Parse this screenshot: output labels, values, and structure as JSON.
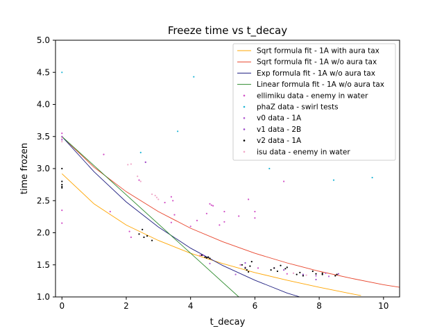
{
  "chart_data": {
    "type": "scatter",
    "title": "Freeze time vs t_decay",
    "xlabel": "t_decay",
    "ylabel": "time frozen",
    "xlim": [
      -0.2,
      10.5
    ],
    "ylim": [
      1.0,
      5.0
    ],
    "xticks": [
      0,
      2,
      4,
      6,
      8,
      10
    ],
    "yticks": [
      1.0,
      1.5,
      2.0,
      2.5,
      3.0,
      3.5,
      4.0,
      4.5,
      5.0
    ],
    "xtick_labels": [
      "0",
      "2",
      "4",
      "6",
      "8",
      "10"
    ],
    "ytick_labels": [
      "1.0",
      "1.5",
      "2.0",
      "2.5",
      "3.0",
      "3.5",
      "4.0",
      "4.5",
      "5.0"
    ],
    "grid": false,
    "legend_position": "top-right",
    "lines": [
      {
        "name": "Sqrt formula fit - 1A with aura tax",
        "color": "#ffa500",
        "x": [
          0,
          1,
          2,
          3,
          4,
          5,
          6,
          7,
          8,
          9,
          9.3
        ],
        "y": [
          2.92,
          2.45,
          2.12,
          1.88,
          1.68,
          1.52,
          1.38,
          1.26,
          1.15,
          1.05,
          1.02
        ]
      },
      {
        "name": "Sqrt formula fit - 1A w/o aura tax",
        "color": "#e8432a",
        "x": [
          0,
          1,
          2,
          3,
          4,
          5,
          6,
          7,
          8,
          9,
          10,
          10.5
        ],
        "y": [
          3.5,
          3.02,
          2.64,
          2.33,
          2.07,
          1.86,
          1.68,
          1.53,
          1.4,
          1.29,
          1.19,
          1.15
        ]
      },
      {
        "name": "Exp formula fit - 1A w/o aura tax",
        "color": "#1f1f80",
        "x": [
          0,
          1,
          2,
          3,
          4,
          5,
          6,
          7,
          7.4
        ],
        "y": [
          3.5,
          2.95,
          2.48,
          2.09,
          1.76,
          1.49,
          1.26,
          1.06,
          1.0
        ]
      },
      {
        "name": "Linear formula fit - 1A w/o aura tax",
        "color": "#2e8b2e",
        "x": [
          0,
          5.5
        ],
        "y": [
          3.5,
          1.0
        ]
      }
    ],
    "series": [
      {
        "name": "ellimiku data - enemy in water",
        "color": "#d14fc6",
        "x": [
          0,
          0,
          0,
          0,
          1.3,
          1.5,
          2.1,
          2.15,
          2.4,
          2.6,
          3.2,
          3.4,
          3.45,
          3.5,
          3.4,
          4.0,
          4.2,
          4.3,
          4.5,
          4.6,
          4.65,
          4.7,
          4.9,
          5.05,
          5.05,
          5.5,
          5.55,
          5.8,
          6.0,
          6.0,
          6.1,
          6.9,
          7.0
        ],
        "y": [
          3.55,
          3.45,
          2.35,
          2.15,
          3.22,
          2.33,
          2.02,
          1.93,
          2.82,
          3.1,
          2.47,
          2.56,
          2.5,
          2.28,
          2.16,
          2.1,
          2.19,
          1.65,
          2.3,
          2.45,
          2.43,
          2.42,
          2.12,
          2.33,
          2.17,
          2.26,
          1.5,
          2.52,
          2.33,
          2.23,
          1.45,
          2.8,
          1.36
        ]
      },
      {
        "name": "phaZ data - swirl tests",
        "color": "#1fb5d6",
        "x": [
          0,
          2.45,
          3.6,
          4.1,
          6.45,
          8.45,
          9.65
        ],
        "y": [
          4.5,
          3.25,
          3.58,
          4.43,
          3.0,
          2.82,
          2.86
        ]
      },
      {
        "name": "v0 data - 1A",
        "color": "#b25bd1",
        "x": [
          0,
          4.6,
          5.4,
          5.7,
          7.9,
          8.2,
          8.3
        ],
        "y": [
          3.45,
          1.52,
          1.35,
          1.46,
          1.33,
          1.37,
          1.32
        ]
      },
      {
        "name": "v1 data - 2B",
        "color": "#9a49c9",
        "x": [
          0,
          2.6,
          4.4,
          4.6,
          5.7,
          6.6,
          6.9,
          7.2,
          7.5,
          7.9,
          8.6
        ],
        "y": [
          3.5,
          3.1,
          1.65,
          1.6,
          1.53,
          1.45,
          1.42,
          1.37,
          1.35,
          1.27,
          1.36
        ]
      },
      {
        "name": "v2 data - 1A",
        "color": "#000000",
        "x": [
          0,
          0,
          0,
          0,
          0,
          2.4,
          2.5,
          2.55,
          2.65,
          2.8,
          4.35,
          4.45,
          4.5,
          4.55,
          4.6,
          5.6,
          5.7,
          5.75,
          5.8,
          5.85,
          5.9,
          6.5,
          6.6,
          6.7,
          6.8,
          6.95,
          7.0,
          7.3,
          7.4,
          7.5,
          7.8,
          7.9,
          8.1,
          8.1,
          8.5,
          8.55
        ],
        "y": [
          3.0,
          2.8,
          2.75,
          2.72,
          2.7,
          1.98,
          2.05,
          1.93,
          1.95,
          1.88,
          1.65,
          1.62,
          1.61,
          1.62,
          1.6,
          1.5,
          1.45,
          1.42,
          1.39,
          1.48,
          1.55,
          1.42,
          1.45,
          1.4,
          1.49,
          1.44,
          1.46,
          1.35,
          1.38,
          1.33,
          1.4,
          1.36,
          1.37,
          1.35,
          1.33,
          1.35
        ]
      },
      {
        "name": "isu data - enemy in water",
        "color": "#f0a8c8",
        "x": [
          0,
          0,
          2.05,
          2.15,
          2.35,
          2.45,
          2.8,
          2.9,
          2.95,
          3.0,
          7.2,
          7.6
        ],
        "y": [
          3.48,
          3.42,
          3.06,
          3.07,
          2.88,
          2.8,
          2.6,
          2.58,
          2.55,
          2.52,
          1.37,
          1.34
        ]
      }
    ]
  }
}
